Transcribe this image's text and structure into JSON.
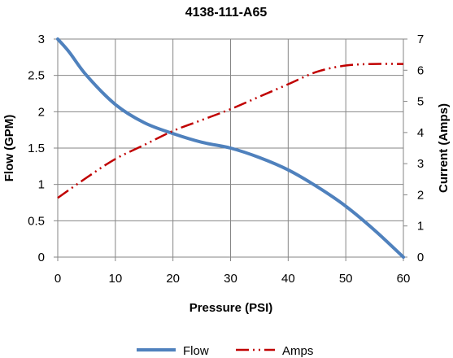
{
  "chart_data": {
    "type": "line",
    "title": "4138-111-A65",
    "xlabel": "Pressure (PSI)",
    "ylabel": "Flow (GPM)",
    "y2label": "Current (Amps)",
    "xlim": [
      0,
      60
    ],
    "ylim": [
      0,
      3
    ],
    "y2lim": [
      0,
      7
    ],
    "x_ticks": [
      "0",
      "10",
      "20",
      "30",
      "40",
      "50",
      "60"
    ],
    "y_ticks": [
      "0",
      "0.5",
      "1",
      "1.5",
      "2",
      "2.5",
      "3"
    ],
    "y2_ticks": [
      "0",
      "1",
      "2",
      "3",
      "4",
      "5",
      "6",
      "7"
    ],
    "grid": true,
    "legend": "bottom",
    "series": [
      {
        "name": "Flow",
        "axis": "left",
        "color": "#4F81BD",
        "style": "solid",
        "x": [
          0,
          2,
          5,
          10,
          15,
          20,
          25,
          30,
          35,
          40,
          45,
          50,
          55,
          60
        ],
        "y": [
          3.0,
          2.82,
          2.5,
          2.1,
          1.85,
          1.7,
          1.58,
          1.5,
          1.37,
          1.2,
          0.97,
          0.7,
          0.37,
          0.0
        ]
      },
      {
        "name": "Amps",
        "axis": "right",
        "color": "#C00000",
        "style": "dash-dot-dot",
        "x": [
          0,
          5,
          10,
          15,
          20,
          25,
          30,
          35,
          40,
          45,
          50,
          55,
          60
        ],
        "y": [
          1.9,
          2.55,
          3.15,
          3.6,
          4.05,
          4.4,
          4.75,
          5.15,
          5.55,
          5.95,
          6.15,
          6.2,
          6.2
        ]
      }
    ]
  }
}
